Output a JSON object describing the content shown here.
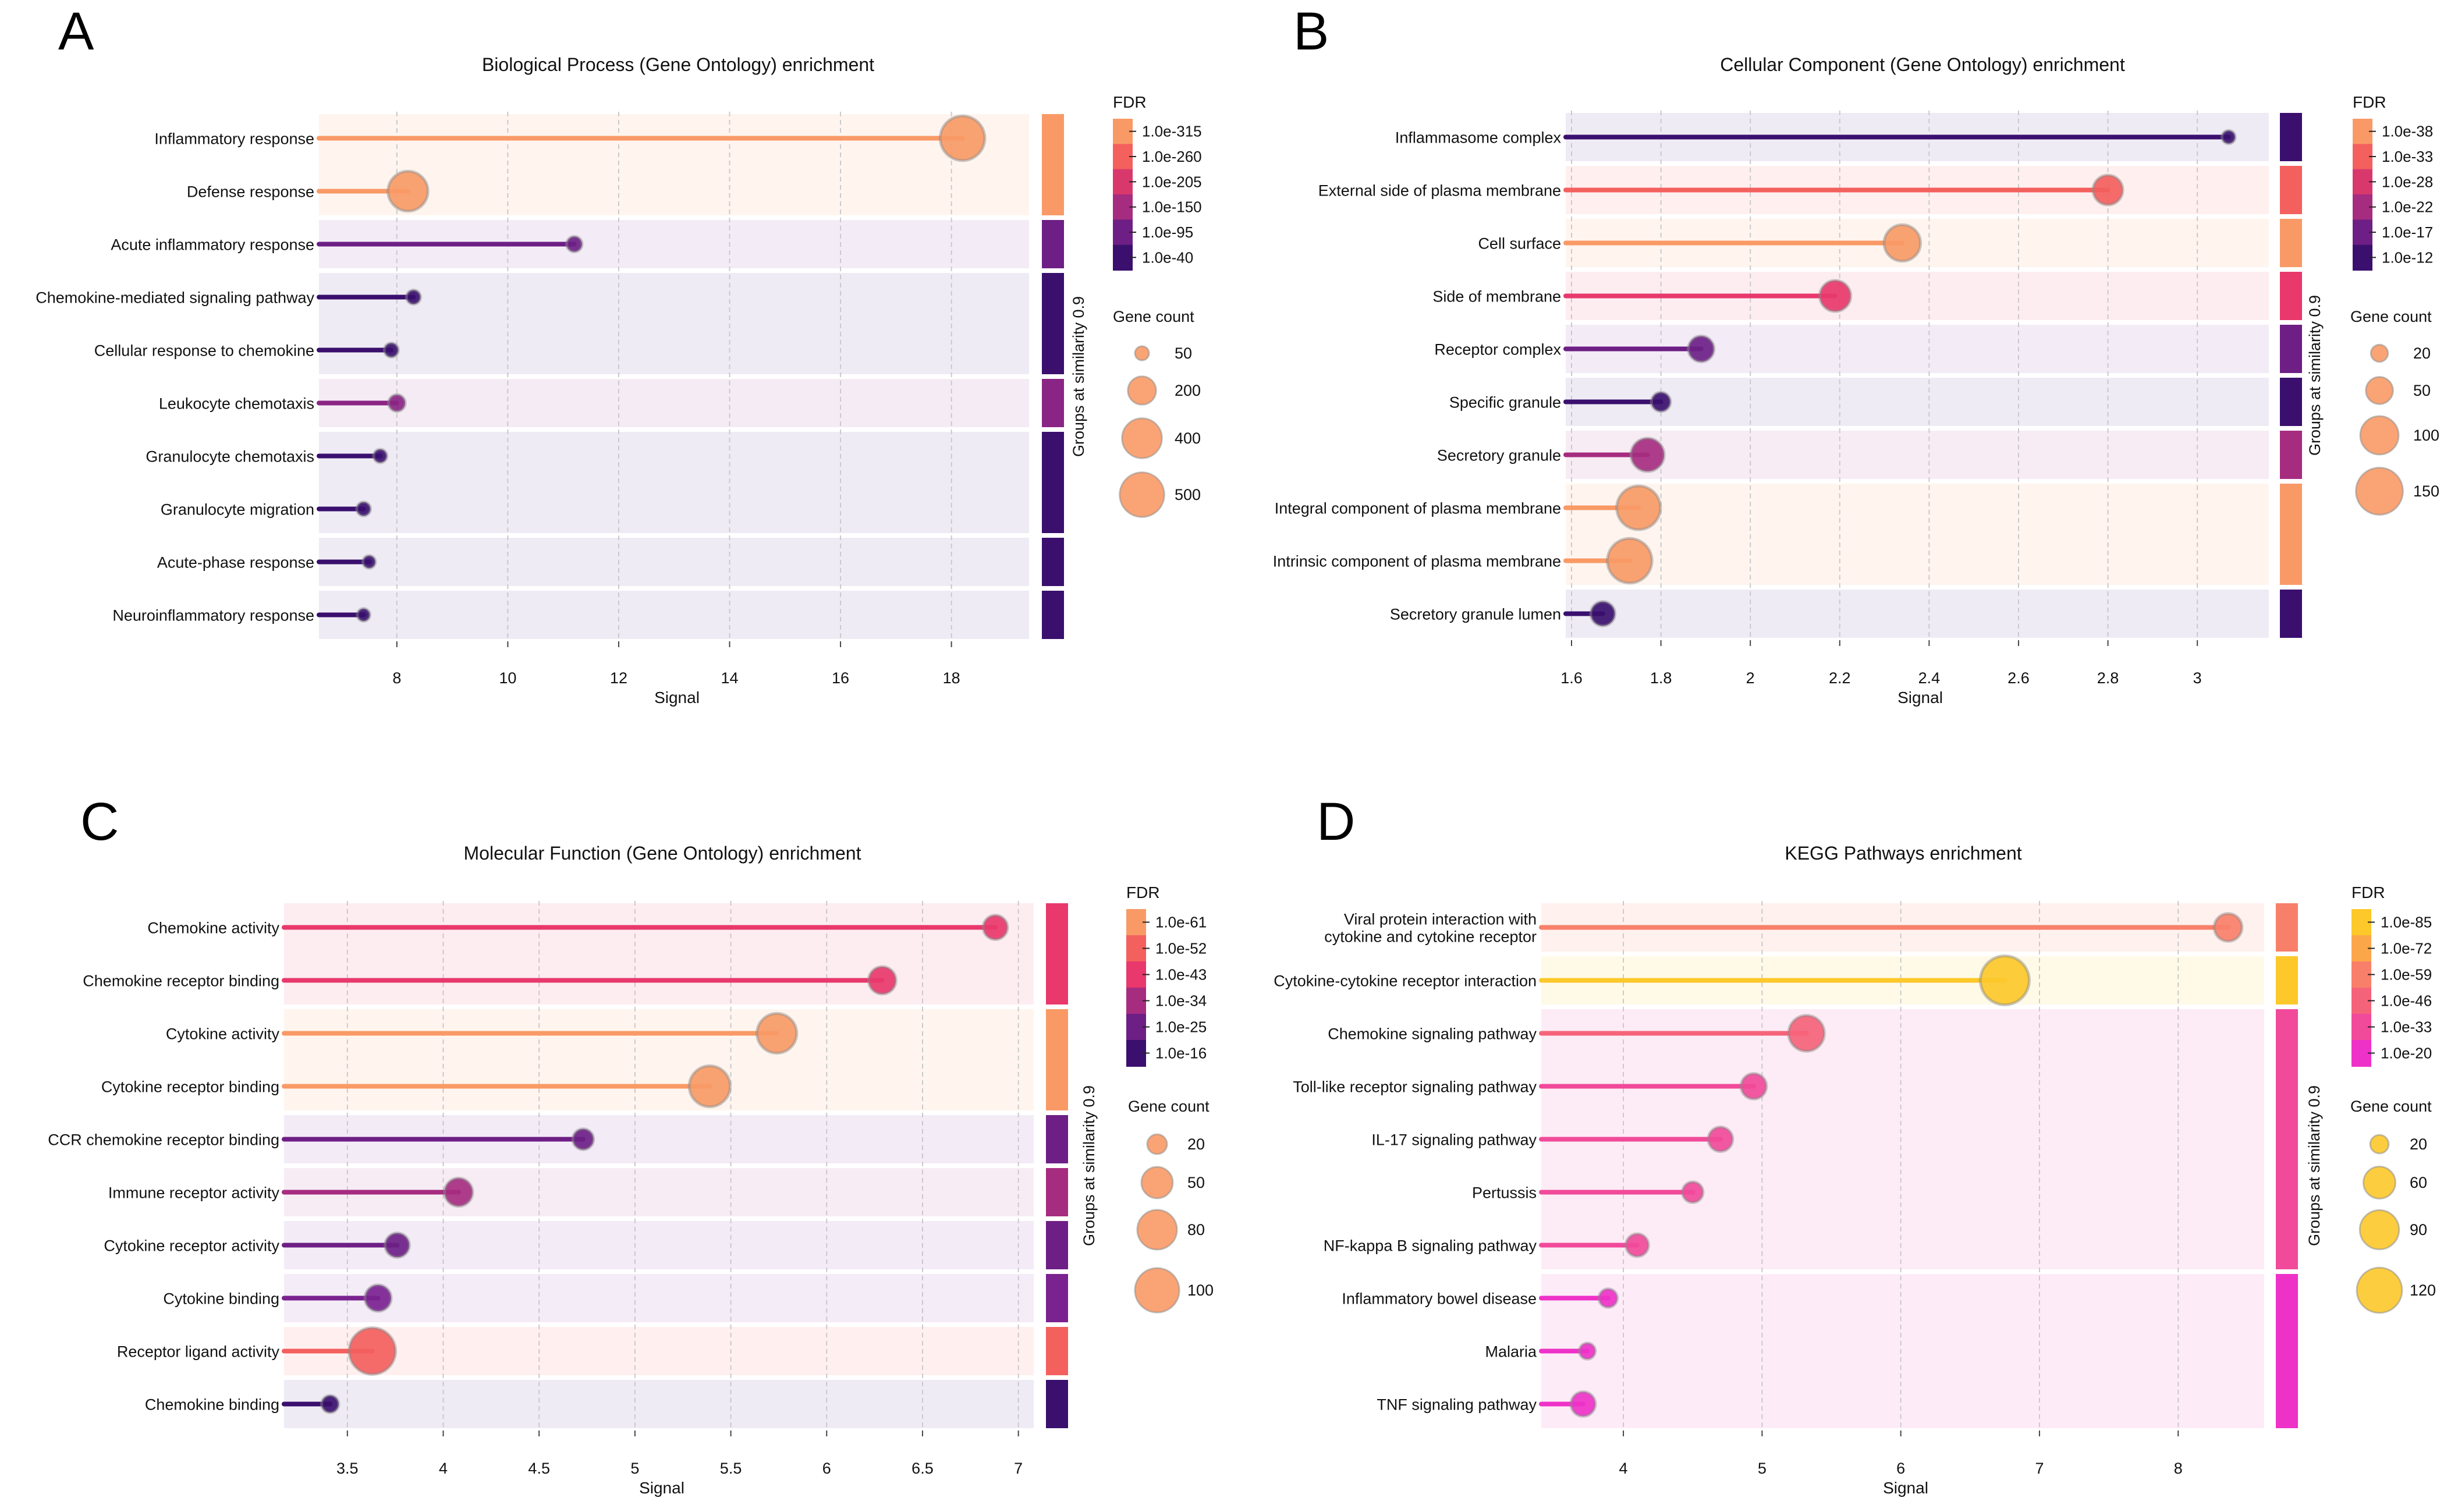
{
  "figure": {
    "colorbar_label": "Groups at similarity 0.9",
    "fdr_legend_title": "FDR",
    "size_legend_title": "Gene count"
  },
  "chart_data": [
    {
      "type": "scatter",
      "panel_letter": "A",
      "title": "Biological Process (Gene Ontology) enrichment",
      "xlabel": "Signal",
      "xlim": [
        6.7,
        19.4
      ],
      "xticks": [
        8,
        10,
        12,
        14,
        16,
        18
      ],
      "size_range": [
        20,
        600
      ],
      "fdr_legend": [
        "1.0e-315",
        "1.0e-260",
        "1.0e-205",
        "1.0e-150",
        "1.0e-95",
        "1.0e-40"
      ],
      "fdr_colors": [
        "#f99a66",
        "#f3605e",
        "#d8386c",
        "#a62c80",
        "#6d1f85",
        "#3a0f6e"
      ],
      "size_legend": [
        50,
        200,
        400,
        500
      ],
      "legend_color": "#f99a66",
      "groups": [
        {
          "rows": [
            0,
            1
          ],
          "color": "#f99a66",
          "bg": "#fff5ee"
        },
        {
          "rows": [
            2
          ],
          "color": "#6d1f85",
          "bg": "#f3ecf7"
        },
        {
          "rows": [
            3,
            4
          ],
          "color": "#3a0f6e",
          "bg": "#efebf5"
        },
        {
          "rows": [
            5
          ],
          "color": "#8a2585",
          "bg": "#f5ebf4"
        },
        {
          "rows": [
            6,
            7
          ],
          "color": "#3a0f6e",
          "bg": "#efebf5"
        },
        {
          "rows": [
            8
          ],
          "color": "#3a0f6e",
          "bg": "#efebf5"
        },
        {
          "rows": [
            9
          ],
          "color": "#3a0f6e",
          "bg": "#efebf5"
        }
      ],
      "terms": [
        {
          "name": "Inflammatory response",
          "signal": 18.2,
          "count": 500,
          "color": "#f99a66"
        },
        {
          "name": "Defense response",
          "signal": 8.2,
          "count": 400,
          "color": "#f99a66"
        },
        {
          "name": "Acute inflammatory response",
          "signal": 11.2,
          "count": 60,
          "color": "#6d1f85"
        },
        {
          "name": "Chemokine-mediated signaling pathway",
          "signal": 8.3,
          "count": 50,
          "color": "#3a0f6e"
        },
        {
          "name": "Cellular response to chemokine",
          "signal": 7.9,
          "count": 50,
          "color": "#3a0f6e"
        },
        {
          "name": "Leukocyte chemotaxis",
          "signal": 8.0,
          "count": 70,
          "color": "#8a2585"
        },
        {
          "name": "Granulocyte chemotaxis",
          "signal": 7.7,
          "count": 45,
          "color": "#3a0f6e"
        },
        {
          "name": "Granulocyte migration",
          "signal": 7.4,
          "count": 48,
          "color": "#3a0f6e"
        },
        {
          "name": "Acute-phase response",
          "signal": 7.5,
          "count": 40,
          "color": "#3a0f6e"
        },
        {
          "name": "Neuroinflammatory response",
          "signal": 7.4,
          "count": 40,
          "color": "#3a0f6e"
        }
      ]
    },
    {
      "type": "scatter",
      "panel_letter": "B",
      "title": "Cellular Component (Gene Ontology) enrichment",
      "xlabel": "Signal",
      "xlim": [
        1.6,
        3.16
      ],
      "xticks": [
        1.6,
        1.8,
        2.0,
        2.2,
        2.4,
        2.6,
        2.8,
        3.0
      ],
      "size_range": [
        10,
        170
      ],
      "fdr_legend": [
        "1.0e-38",
        "1.0e-33",
        "1.0e-28",
        "1.0e-22",
        "1.0e-17",
        "1.0e-12"
      ],
      "fdr_colors": [
        "#f99a66",
        "#f3605e",
        "#d8386c",
        "#a62c80",
        "#6d1f85",
        "#3a0f6e"
      ],
      "size_legend": [
        20,
        50,
        100,
        150
      ],
      "legend_color": "#f99a66",
      "groups": [
        {
          "rows": [
            0
          ],
          "color": "#3a0f6e",
          "bg": "#efebf5"
        },
        {
          "rows": [
            1
          ],
          "color": "#f3605e",
          "bg": "#fff0ef"
        },
        {
          "rows": [
            2
          ],
          "color": "#f99a66",
          "bg": "#fff5ee"
        },
        {
          "rows": [
            3
          ],
          "color": "#e8386c",
          "bg": "#fdedf1"
        },
        {
          "rows": [
            4
          ],
          "color": "#6d1f85",
          "bg": "#f3ecf7"
        },
        {
          "rows": [
            5
          ],
          "color": "#3a0f6e",
          "bg": "#efebf5"
        },
        {
          "rows": [
            6
          ],
          "color": "#a62c80",
          "bg": "#f7ecf4"
        },
        {
          "rows": [
            7,
            8
          ],
          "color": "#f99a66",
          "bg": "#fff5ee"
        },
        {
          "rows": [
            9
          ],
          "color": "#3a0f6e",
          "bg": "#efebf5"
        }
      ],
      "terms": [
        {
          "name": "Inflammasome complex",
          "signal": 3.07,
          "count": 12,
          "color": "#3a0f6e"
        },
        {
          "name": "External side of plasma membrane",
          "signal": 2.8,
          "count": 60,
          "color": "#f3605e"
        },
        {
          "name": "Cell surface",
          "signal": 2.34,
          "count": 90,
          "color": "#f99a66"
        },
        {
          "name": "Side of membrane",
          "signal": 2.19,
          "count": 65,
          "color": "#e8386c"
        },
        {
          "name": "Receptor complex",
          "signal": 1.89,
          "count": 45,
          "color": "#6d1f85"
        },
        {
          "name": "Specific granule",
          "signal": 1.8,
          "count": 25,
          "color": "#3a0f6e"
        },
        {
          "name": "Secretory granule",
          "signal": 1.77,
          "count": 75,
          "color": "#a62c80"
        },
        {
          "name": "Integral component of plasma membrane",
          "signal": 1.75,
          "count": 130,
          "color": "#f99a66"
        },
        {
          "name": "Intrinsic component of plasma membrane",
          "signal": 1.73,
          "count": 135,
          "color": "#f99a66"
        },
        {
          "name": "Secretory granule lumen",
          "signal": 1.67,
          "count": 40,
          "color": "#3a0f6e"
        }
      ]
    },
    {
      "type": "scatter",
      "panel_letter": "C",
      "title": "Molecular Function (Gene Ontology) enrichment",
      "xlabel": "Signal",
      "xlim": [
        3.2,
        7.08
      ],
      "xticks": [
        3.5,
        4.0,
        4.5,
        5.0,
        5.5,
        6.0,
        6.5,
        7.0
      ],
      "size_range": [
        10,
        110
      ],
      "fdr_legend": [
        "1.0e-61",
        "1.0e-52",
        "1.0e-43",
        "1.0e-34",
        "1.0e-25",
        "1.0e-16"
      ],
      "fdr_colors": [
        "#f99a66",
        "#f3605e",
        "#e8386c",
        "#a62c80",
        "#6d1f85",
        "#3a0f6e"
      ],
      "size_legend": [
        20,
        50,
        80,
        100
      ],
      "legend_color": "#f99a66",
      "groups": [
        {
          "rows": [
            0,
            1
          ],
          "color": "#e8386c",
          "bg": "#fdedf1"
        },
        {
          "rows": [
            2,
            3
          ],
          "color": "#f99a66",
          "bg": "#fff5ee"
        },
        {
          "rows": [
            4
          ],
          "color": "#6d1f85",
          "bg": "#f3ecf7"
        },
        {
          "rows": [
            5
          ],
          "color": "#a62c80",
          "bg": "#f7ecf4"
        },
        {
          "rows": [
            6
          ],
          "color": "#6d1f85",
          "bg": "#f3ecf7"
        },
        {
          "rows": [
            7
          ],
          "color": "#7a2290",
          "bg": "#f4ecf7"
        },
        {
          "rows": [
            8
          ],
          "color": "#f3605e",
          "bg": "#fff0ef"
        },
        {
          "rows": [
            9
          ],
          "color": "#3a0f6e",
          "bg": "#efebf5"
        }
      ],
      "terms": [
        {
          "name": "Chemokine activity",
          "signal": 6.88,
          "count": 30,
          "color": "#e8386c"
        },
        {
          "name": "Chemokine receptor binding",
          "signal": 6.29,
          "count": 38,
          "color": "#e8386c"
        },
        {
          "name": "Cytokine activity",
          "signal": 5.74,
          "count": 80,
          "color": "#f99a66"
        },
        {
          "name": "Cytokine receptor binding",
          "signal": 5.39,
          "count": 85,
          "color": "#f99a66"
        },
        {
          "name": "CCR chemokine receptor binding",
          "signal": 4.73,
          "count": 22,
          "color": "#6d1f85"
        },
        {
          "name": "Immune receptor activity",
          "signal": 4.08,
          "count": 40,
          "color": "#a62c80"
        },
        {
          "name": "Cytokine receptor activity",
          "signal": 3.76,
          "count": 30,
          "color": "#6d1f85"
        },
        {
          "name": "Cytokine binding",
          "signal": 3.66,
          "count": 35,
          "color": "#7a2290"
        },
        {
          "name": "Receptor ligand activity",
          "signal": 3.63,
          "count": 110,
          "color": "#f3605e"
        },
        {
          "name": "Chemokine binding",
          "signal": 3.41,
          "count": 15,
          "color": "#3a0f6e"
        }
      ]
    },
    {
      "type": "scatter",
      "panel_letter": "D",
      "title": "KEGG Pathways enrichment",
      "xlabel": "Signal",
      "xlim": [
        3.45,
        8.62
      ],
      "xticks": [
        4,
        5,
        6,
        7,
        8
      ],
      "size_range": [
        10,
        140
      ],
      "fdr_legend": [
        "1.0e-85",
        "1.0e-72",
        "1.0e-59",
        "1.0e-46",
        "1.0e-33",
        "1.0e-20"
      ],
      "fdr_colors": [
        "#fcc82a",
        "#fca64a",
        "#f8806a",
        "#f5637a",
        "#f14a9a",
        "#ee32c8"
      ],
      "size_legend": [
        20,
        60,
        90,
        120
      ],
      "legend_color": "#fcc82a",
      "groups": [
        {
          "rows": [
            0
          ],
          "color": "#f8806a",
          "bg": "#fff1ee"
        },
        {
          "rows": [
            1
          ],
          "color": "#fcc82a",
          "bg": "#fffae8"
        },
        {
          "rows": [
            2,
            3,
            4,
            5,
            6
          ],
          "color": "#f14a9a",
          "bg": "#fdecf5"
        },
        {
          "rows": [
            7,
            8,
            9
          ],
          "color": "#ee32c8",
          "bg": "#fdecf8"
        }
      ],
      "terms": [
        {
          "name": "Viral protein interaction with\ncytokine and cytokine receptor",
          "signal": 8.36,
          "count": 45,
          "color": "#f8806a"
        },
        {
          "name": "Cytokine-cytokine receptor interaction",
          "signal": 6.75,
          "count": 140,
          "color": "#fcc82a"
        },
        {
          "name": "Chemokine signaling pathway",
          "signal": 5.32,
          "count": 75,
          "color": "#f5637a"
        },
        {
          "name": "Toll-like receptor signaling pathway",
          "signal": 4.94,
          "count": 38,
          "color": "#f14a9a"
        },
        {
          "name": "IL-17 signaling pathway",
          "signal": 4.7,
          "count": 35,
          "color": "#f14a9a"
        },
        {
          "name": "Pertussis",
          "signal": 4.5,
          "count": 25,
          "color": "#f14a9a"
        },
        {
          "name": "NF-kappa B signaling pathway",
          "signal": 4.1,
          "count": 30,
          "color": "#f14a9a"
        },
        {
          "name": "Inflammatory bowel disease",
          "signal": 3.89,
          "count": 20,
          "color": "#ee32c8"
        },
        {
          "name": "Malaria",
          "signal": 3.74,
          "count": 15,
          "color": "#ee32c8"
        },
        {
          "name": "TNF signaling pathway",
          "signal": 3.71,
          "count": 35,
          "color": "#ee32c8"
        }
      ]
    }
  ]
}
